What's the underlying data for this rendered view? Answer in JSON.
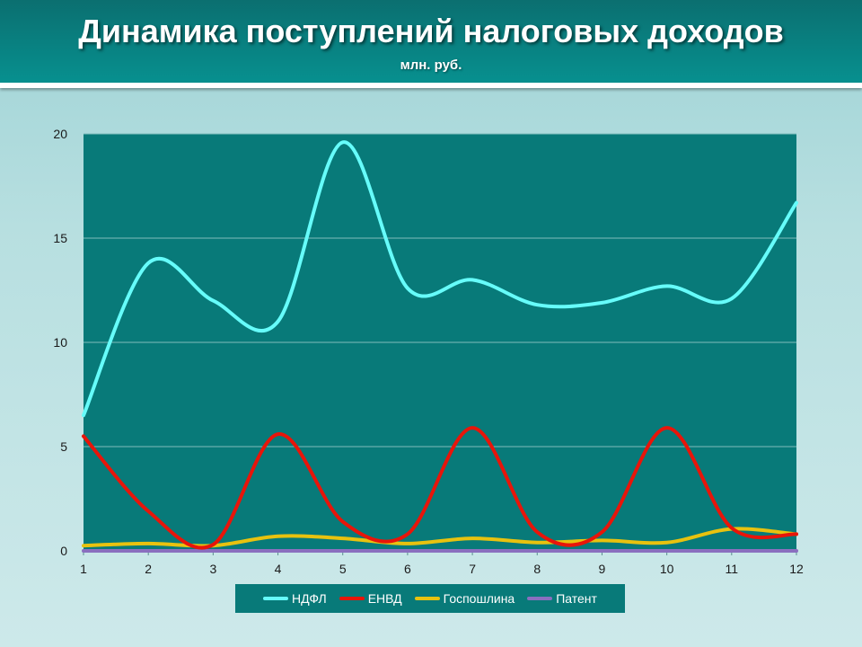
{
  "header": {
    "title": "Динамика поступлений налоговых доходов",
    "subtitle": "млн. руб."
  },
  "chart_data": {
    "type": "line",
    "x": [
      1,
      2,
      3,
      4,
      5,
      6,
      7,
      8,
      9,
      10,
      11,
      12
    ],
    "xlim": [
      1,
      12
    ],
    "ylim": [
      0,
      20
    ],
    "yticks": [
      0,
      5,
      10,
      15,
      20
    ],
    "grid": true,
    "legend_position": "bottom",
    "plot_background": "#087a79",
    "series": [
      {
        "name": "НДФЛ",
        "color": "#66fcfa",
        "values": [
          6.5,
          13.8,
          12.0,
          11.0,
          19.6,
          12.6,
          13.0,
          11.8,
          11.9,
          12.7,
          12.1,
          16.7
        ]
      },
      {
        "name": "ЕНВД",
        "color": "#e8150a",
        "values": [
          5.5,
          1.9,
          0.3,
          5.6,
          1.4,
          0.8,
          5.9,
          0.9,
          0.9,
          5.9,
          1.1,
          0.8
        ]
      },
      {
        "name": "Госпошлина",
        "color": "#e8c20f",
        "values": [
          0.25,
          0.35,
          0.25,
          0.7,
          0.6,
          0.35,
          0.6,
          0.4,
          0.5,
          0.4,
          1.05,
          0.8
        ]
      },
      {
        "name": "Патент",
        "color": "#8a6fbf",
        "values": [
          0,
          0,
          0,
          0,
          0,
          0,
          0,
          0,
          0,
          0,
          0,
          0
        ]
      }
    ]
  }
}
